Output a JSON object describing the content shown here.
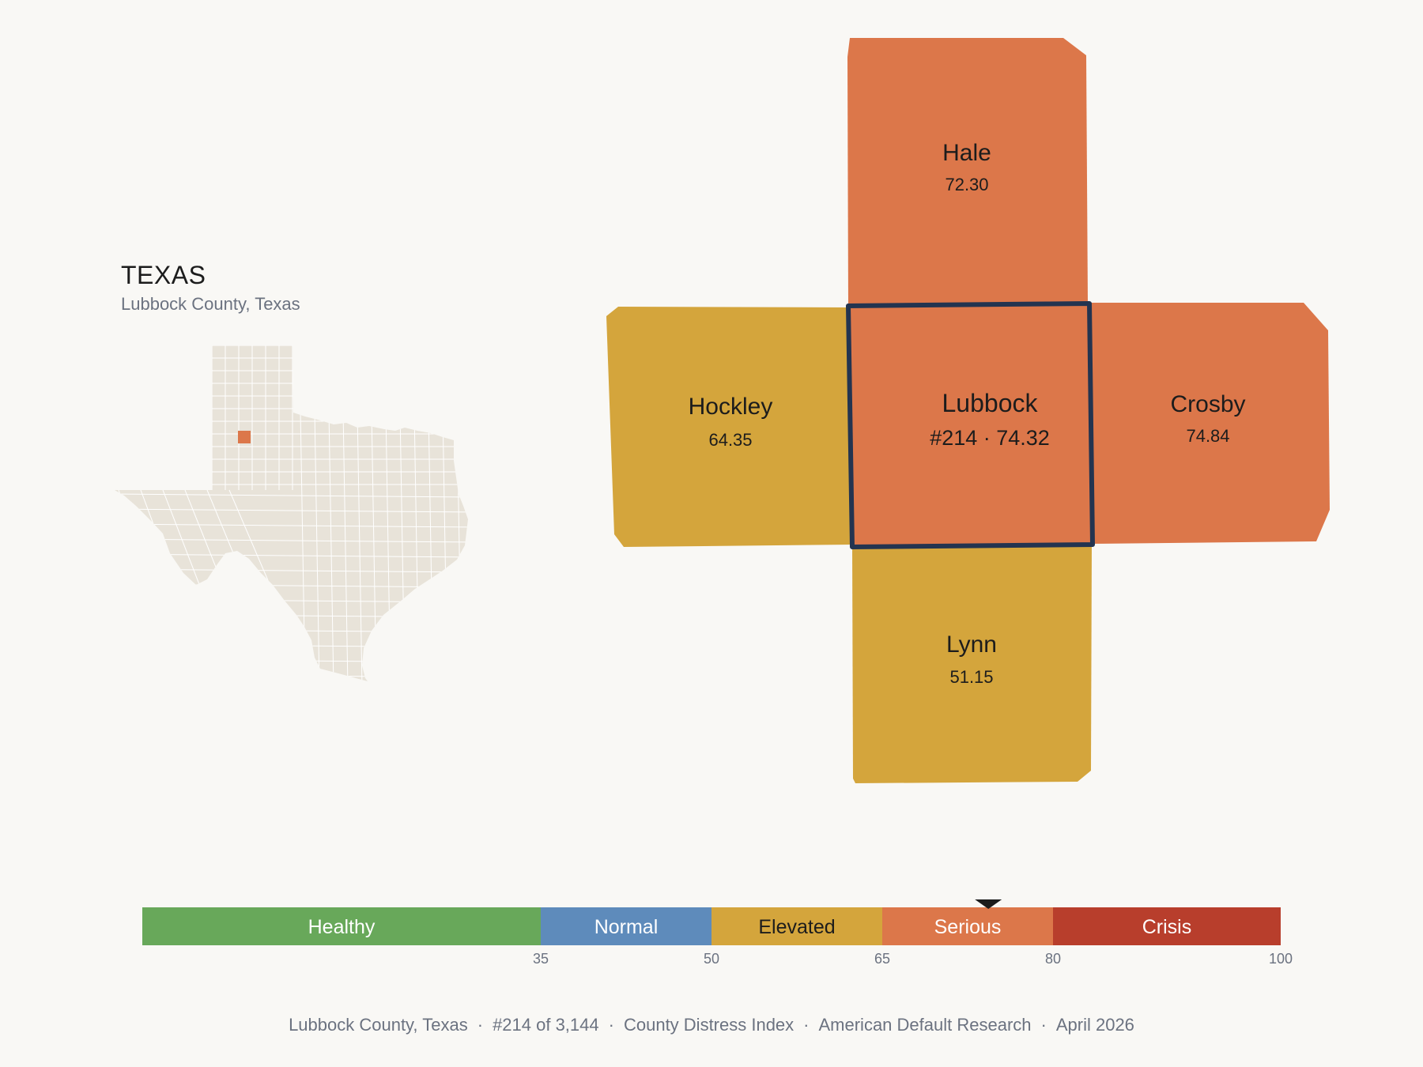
{
  "state": {
    "title": "TEXAS",
    "subtitle": "Lubbock County, Texas"
  },
  "inset": {
    "highlight_color": "#dc774a",
    "base_color": "#e8e3d9"
  },
  "counties": {
    "hale": {
      "name": "Hale",
      "value": "72.30",
      "color": "#dc774a"
    },
    "hockley": {
      "name": "Hockley",
      "value": "64.35",
      "color": "#d4a53c"
    },
    "lubbock": {
      "name": "Lubbock",
      "value": "#214 · 74.32",
      "color": "#dc774a",
      "outline": "#233450"
    },
    "crosby": {
      "name": "Crosby",
      "value": "74.84",
      "color": "#dc774a"
    },
    "lynn": {
      "name": "Lynn",
      "value": "51.15",
      "color": "#d4a53c"
    }
  },
  "scale": {
    "min": 0,
    "max": 100,
    "marker_value": 74.32,
    "segments": [
      {
        "label": "Healthy",
        "from": 0,
        "to": 35,
        "color": "#68a85a",
        "text_color": "#ffffff"
      },
      {
        "label": "Normal",
        "from": 35,
        "to": 50,
        "color": "#5e8bbb",
        "text_color": "#ffffff"
      },
      {
        "label": "Elevated",
        "from": 50,
        "to": 65,
        "color": "#d4a53c",
        "text_color": "#1c1c1c"
      },
      {
        "label": "Serious",
        "from": 65,
        "to": 80,
        "color": "#dc774a",
        "text_color": "#ffffff"
      },
      {
        "label": "Crisis",
        "from": 80,
        "to": 100,
        "color": "#b83e2c",
        "text_color": "#ffffff"
      }
    ],
    "ticks": [
      "35",
      "50",
      "65",
      "80",
      "100"
    ]
  },
  "footer": {
    "items": [
      "Lubbock County, Texas",
      "#214 of 3,144",
      "County Distress Index",
      "American Default Research",
      "April 2026"
    ]
  }
}
